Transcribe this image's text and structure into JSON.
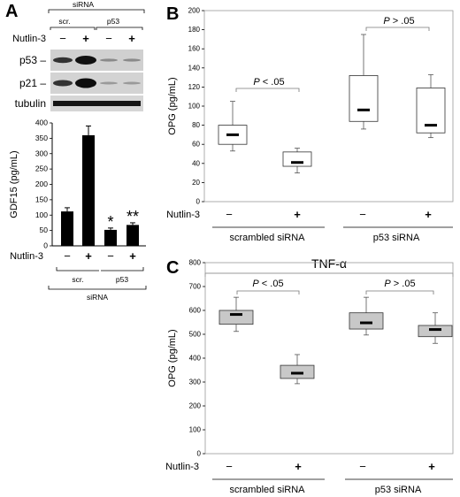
{
  "panel_labels": {
    "a": "A",
    "b": "B",
    "c": "C"
  },
  "panel_a": {
    "blot": {
      "header": "siRNA",
      "groups": [
        "scr.",
        "p53"
      ],
      "treatment_label": "Nutlin-3",
      "treatment_states": [
        "−",
        "+",
        "−",
        "+"
      ],
      "bands": [
        "p53 –",
        "p21 –",
        "tubulin"
      ]
    },
    "bottom": {
      "treatment_label": "Nutlin-3",
      "treatment_states": [
        "−",
        "+",
        "−",
        "+"
      ],
      "groups": [
        "scr.",
        "p53"
      ],
      "footer": "siRNA"
    },
    "significance": [
      "*",
      "**"
    ]
  },
  "panel_b": {
    "p_values": [
      {
        "italic": "P",
        "rest": " < .05"
      },
      {
        "italic": "P",
        "rest": " > .05"
      }
    ],
    "treatment_label": "Nutlin-3",
    "treatment_states": [
      "−",
      "+",
      "−",
      "+"
    ],
    "groups": [
      "scrambled siRNA",
      "p53 siRNA"
    ]
  },
  "panel_c": {
    "header": "TNF-α",
    "p_values": [
      {
        "italic": "P",
        "rest": " < .05"
      },
      {
        "italic": "P",
        "rest": " > .05"
      }
    ],
    "treatment_label": "Nutlin-3",
    "treatment_states": [
      "−",
      "+",
      "−",
      "+"
    ],
    "groups": [
      "scrambled siRNA",
      "p53 siRNA"
    ]
  },
  "colors": {
    "bar_fill": "#000000",
    "box_fill_b": "#ffffff",
    "box_fill_c": "#c8c8c8",
    "blot_bg": "#d0d0d0",
    "band": "#111111"
  },
  "chart_data": [
    {
      "type": "bar",
      "panel": "A",
      "categories": [
        "scr. −",
        "scr. +",
        "p53 −",
        "p53 +"
      ],
      "values": [
        112,
        360,
        52,
        68
      ],
      "errors": [
        12,
        30,
        6,
        7
      ],
      "ylabel": "GDF15 (pg/mL)",
      "ylim": [
        0,
        400
      ],
      "yticks": [
        0,
        50,
        100,
        150,
        200,
        250,
        300,
        350,
        400
      ],
      "annotations": [
        "",
        "",
        "*",
        "**"
      ]
    },
    {
      "type": "box",
      "panel": "B",
      "categories": [
        "scrambled siRNA −",
        "scrambled siRNA +",
        "p53 siRNA −",
        "p53 siRNA +"
      ],
      "boxes": [
        {
          "min": 53,
          "q1": 60,
          "median": 70,
          "q3": 80,
          "max": 105
        },
        {
          "min": 30,
          "q1": 37,
          "median": 41,
          "q3": 52,
          "max": 56
        },
        {
          "min": 76,
          "q1": 84,
          "median": 96,
          "q3": 132,
          "max": 175
        },
        {
          "min": 67,
          "q1": 72,
          "median": 80,
          "q3": 119,
          "max": 133
        }
      ],
      "ylabel": "OPG (pg/mL)",
      "ylim": [
        0,
        200
      ],
      "yticks": [
        0,
        20,
        40,
        60,
        80,
        100,
        120,
        140,
        160,
        180,
        200
      ]
    },
    {
      "type": "box",
      "panel": "C",
      "categories": [
        "scrambled siRNA −",
        "scrambled siRNA +",
        "p53 siRNA −",
        "p53 siRNA +"
      ],
      "boxes": [
        {
          "min": 512,
          "q1": 542,
          "median": 583,
          "q3": 600,
          "max": 655
        },
        {
          "min": 293,
          "q1": 315,
          "median": 337,
          "q3": 370,
          "max": 415
        },
        {
          "min": 497,
          "q1": 522,
          "median": 548,
          "q3": 590,
          "max": 655
        },
        {
          "min": 462,
          "q1": 490,
          "median": 520,
          "q3": 537,
          "max": 590
        }
      ],
      "ylabel": "OPG (pg/mL)",
      "ylim": [
        0,
        800
      ],
      "yticks": [
        0,
        100,
        200,
        300,
        400,
        500,
        600,
        700,
        800
      ]
    }
  ]
}
